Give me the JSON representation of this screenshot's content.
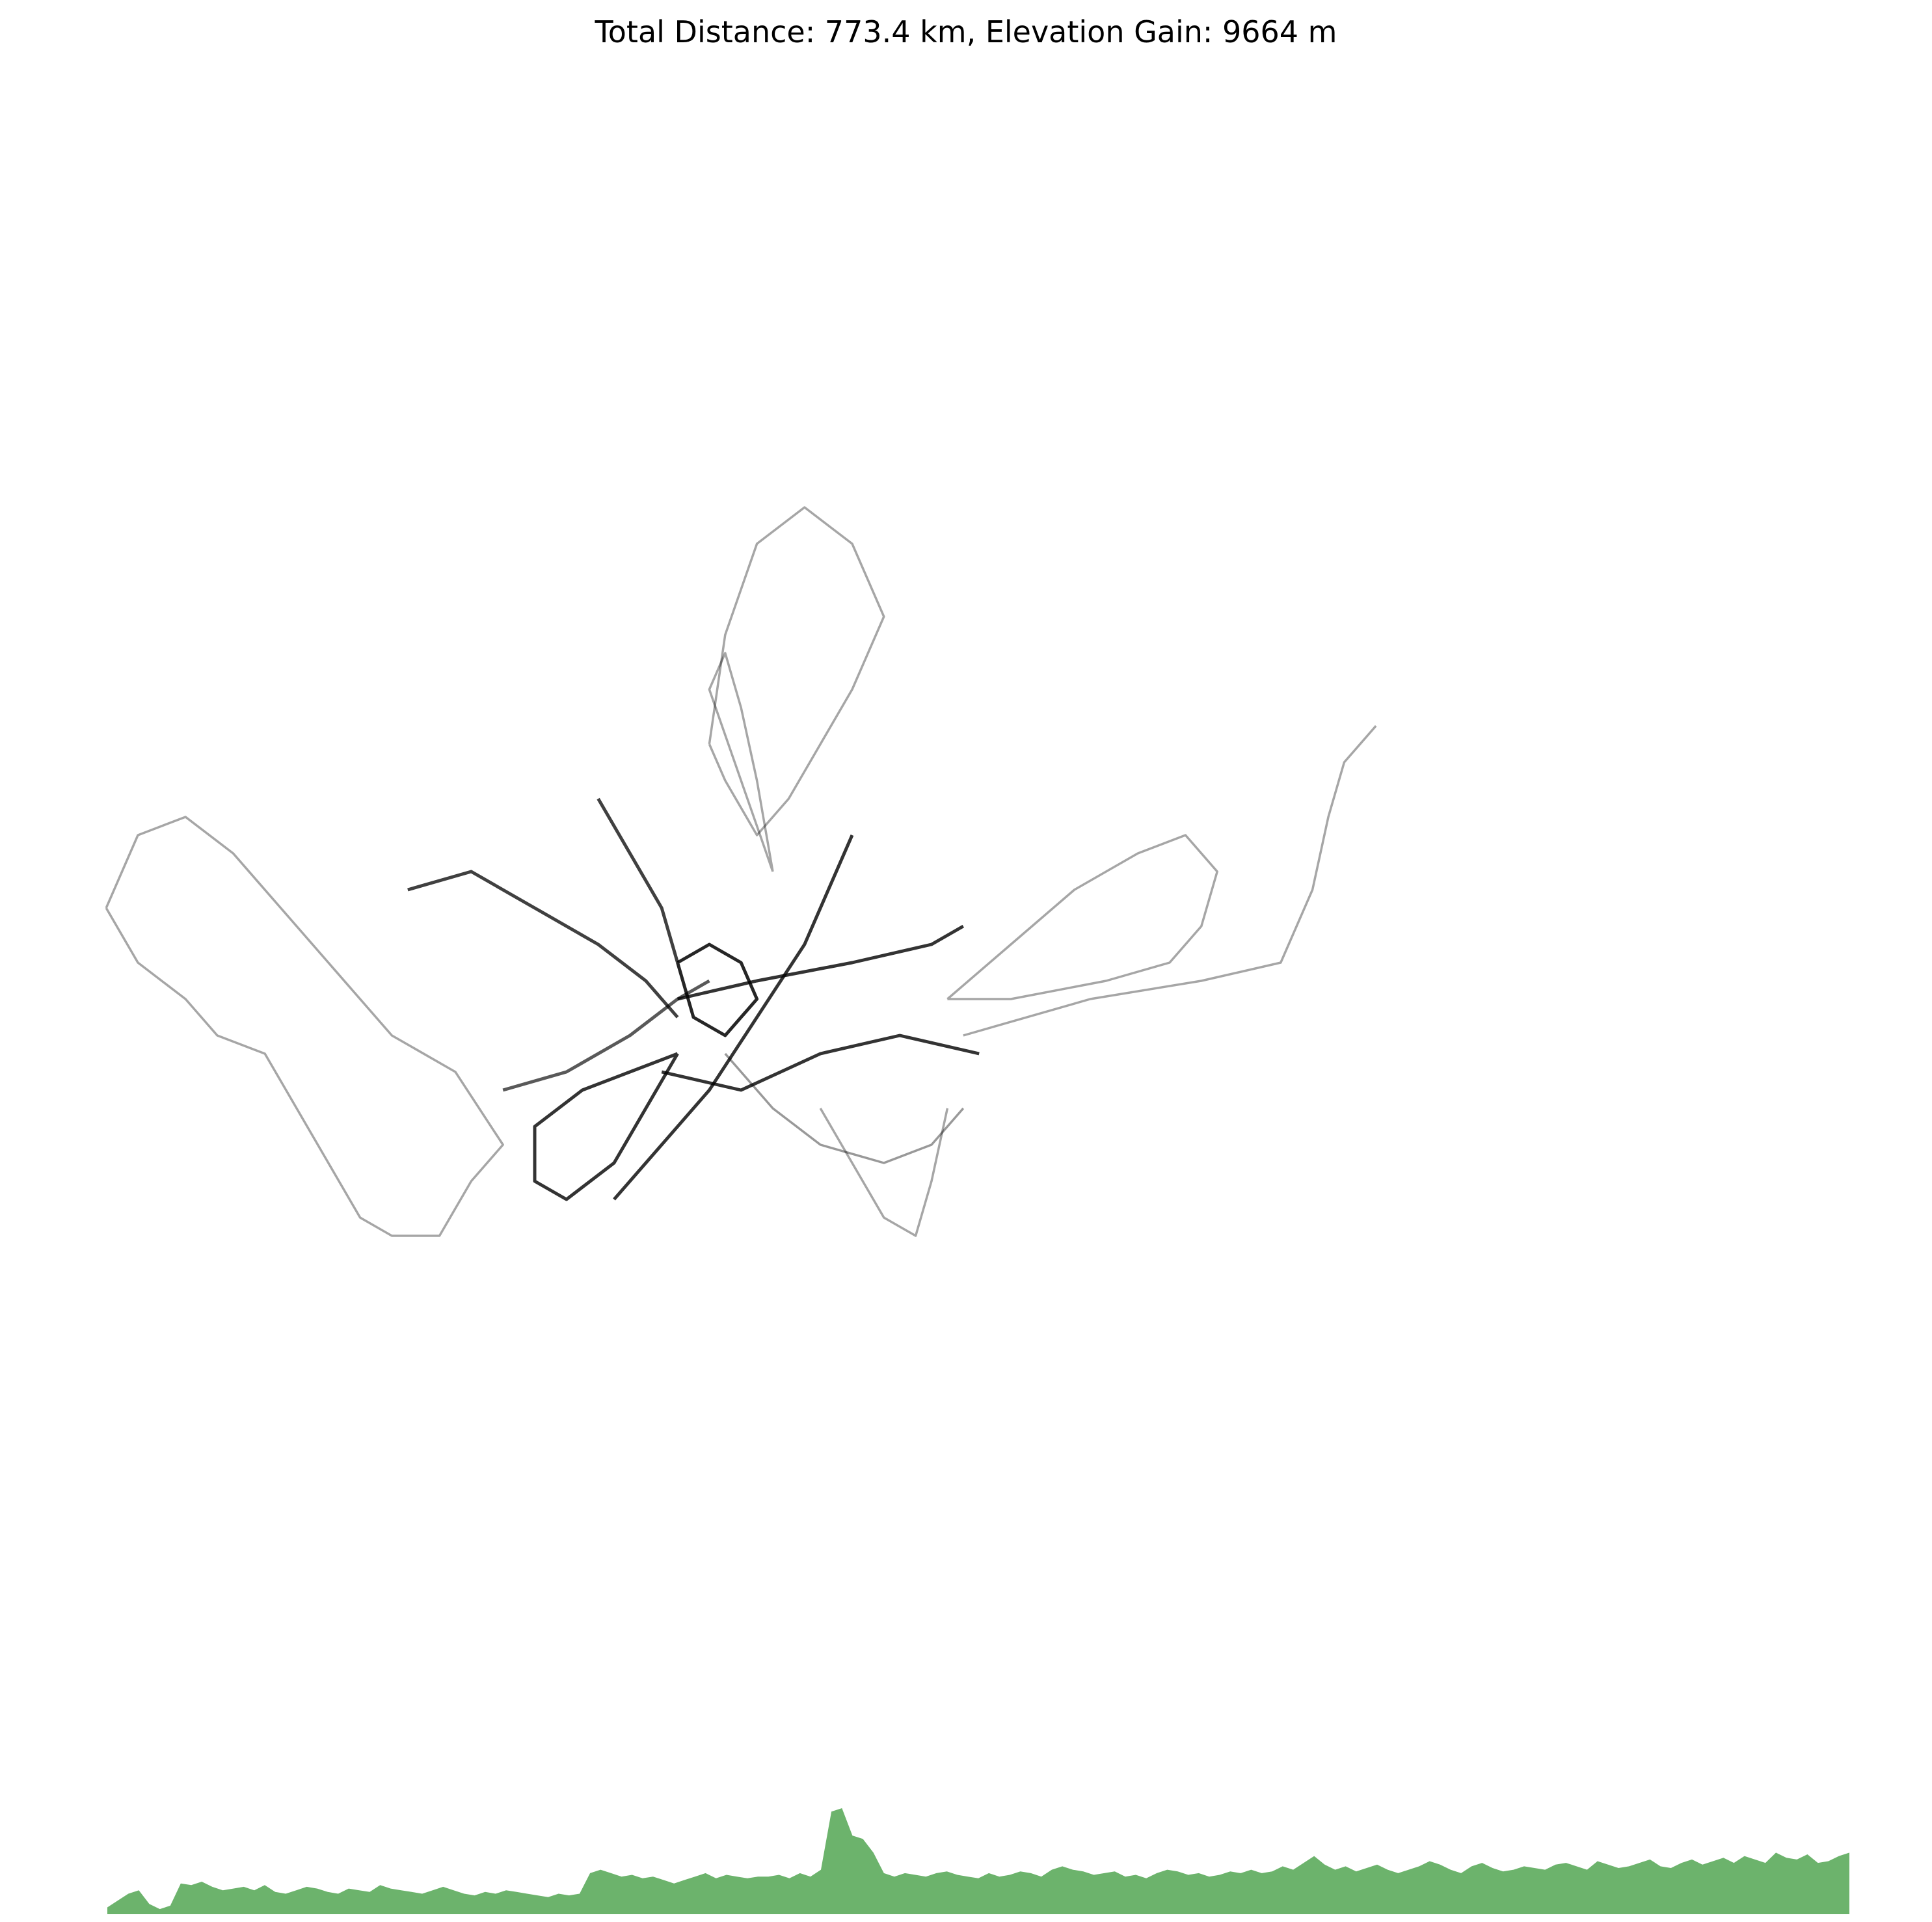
{
  "title": "Total Distance: 773.4 km, Elevation Gain: 9664 m",
  "colors": {
    "route": "#000000",
    "elevation_fill": "#6cb36c"
  },
  "chart_data": [
    {
      "type": "line",
      "name": "route-map",
      "xlabel": "",
      "ylabel": "",
      "grid": false,
      "axes_visible": false,
      "note_units": "normalized",
      "series": [
        {
          "name": "west-loop",
          "weight": 0.35,
          "points": [
            [
              0.03,
              0.47
            ],
            [
              0.05,
              0.5
            ],
            [
              0.08,
              0.52
            ],
            [
              0.1,
              0.54
            ],
            [
              0.13,
              0.55
            ],
            [
              0.15,
              0.58
            ],
            [
              0.17,
              0.61
            ],
            [
              0.19,
              0.64
            ],
            [
              0.21,
              0.65
            ],
            [
              0.24,
              0.65
            ],
            [
              0.26,
              0.62
            ],
            [
              0.28,
              0.6
            ],
            [
              0.25,
              0.56
            ],
            [
              0.21,
              0.54
            ],
            [
              0.17,
              0.5
            ],
            [
              0.14,
              0.47
            ],
            [
              0.11,
              0.44
            ],
            [
              0.08,
              0.42
            ],
            [
              0.05,
              0.43
            ],
            [
              0.03,
              0.47
            ]
          ]
        },
        {
          "name": "north-loop",
          "weight": 0.35,
          "points": [
            [
              0.41,
              0.38
            ],
            [
              0.42,
              0.32
            ],
            [
              0.44,
              0.27
            ],
            [
              0.47,
              0.25
            ],
            [
              0.5,
              0.27
            ],
            [
              0.52,
              0.31
            ],
            [
              0.5,
              0.35
            ],
            [
              0.48,
              0.38
            ],
            [
              0.46,
              0.41
            ],
            [
              0.44,
              0.43
            ],
            [
              0.42,
              0.4
            ],
            [
              0.41,
              0.38
            ]
          ]
        },
        {
          "name": "north-spur",
          "weight": 0.35,
          "points": [
            [
              0.45,
              0.45
            ],
            [
              0.44,
              0.4
            ],
            [
              0.43,
              0.36
            ],
            [
              0.42,
              0.33
            ],
            [
              0.41,
              0.35
            ],
            [
              0.43,
              0.4
            ],
            [
              0.45,
              0.45
            ]
          ]
        },
        {
          "name": "east-loop",
          "weight": 0.35,
          "points": [
            [
              0.56,
              0.52
            ],
            [
              0.6,
              0.49
            ],
            [
              0.64,
              0.46
            ],
            [
              0.68,
              0.44
            ],
            [
              0.71,
              0.43
            ],
            [
              0.73,
              0.45
            ],
            [
              0.72,
              0.48
            ],
            [
              0.7,
              0.5
            ],
            [
              0.66,
              0.51
            ],
            [
              0.6,
              0.52
            ],
            [
              0.56,
              0.52
            ]
          ]
        },
        {
          "name": "far-east",
          "weight": 0.35,
          "points": [
            [
              0.57,
              0.54
            ],
            [
              0.65,
              0.52
            ],
            [
              0.72,
              0.51
            ],
            [
              0.77,
              0.5
            ],
            [
              0.79,
              0.46
            ],
            [
              0.8,
              0.42
            ],
            [
              0.81,
              0.39
            ],
            [
              0.83,
              0.37
            ]
          ]
        },
        {
          "name": "west-main",
          "weight": 0.75,
          "points": [
            [
              0.22,
              0.46
            ],
            [
              0.26,
              0.45
            ],
            [
              0.3,
              0.47
            ],
            [
              0.34,
              0.49
            ],
            [
              0.37,
              0.51
            ],
            [
              0.39,
              0.53
            ]
          ]
        },
        {
          "name": "south-loop",
          "weight": 0.8,
          "points": [
            [
              0.39,
              0.55
            ],
            [
              0.37,
              0.58
            ],
            [
              0.35,
              0.61
            ],
            [
              0.32,
              0.63
            ],
            [
              0.3,
              0.62
            ],
            [
              0.3,
              0.59
            ],
            [
              0.33,
              0.57
            ],
            [
              0.36,
              0.56
            ],
            [
              0.39,
              0.55
            ]
          ]
        },
        {
          "name": "diagonal-ne",
          "weight": 0.8,
          "points": [
            [
              0.35,
              0.63
            ],
            [
              0.38,
              0.6
            ],
            [
              0.41,
              0.57
            ],
            [
              0.44,
              0.53
            ],
            [
              0.47,
              0.49
            ],
            [
              0.49,
              0.45
            ],
            [
              0.5,
              0.43
            ]
          ]
        },
        {
          "name": "diagonal-sw",
          "weight": 0.65,
          "points": [
            [
              0.28,
              0.57
            ],
            [
              0.32,
              0.56
            ],
            [
              0.36,
              0.54
            ],
            [
              0.39,
              0.52
            ],
            [
              0.41,
              0.51
            ]
          ]
        },
        {
          "name": "central-east",
          "weight": 0.8,
          "points": [
            [
              0.39,
              0.52
            ],
            [
              0.44,
              0.51
            ],
            [
              0.5,
              0.5
            ],
            [
              0.55,
              0.49
            ],
            [
              0.57,
              0.48
            ]
          ]
        },
        {
          "name": "central-south",
          "weight": 0.8,
          "points": [
            [
              0.38,
              0.56
            ],
            [
              0.43,
              0.57
            ],
            [
              0.48,
              0.55
            ],
            [
              0.53,
              0.54
            ],
            [
              0.58,
              0.55
            ]
          ]
        },
        {
          "name": "inner-ring",
          "weight": 0.85,
          "points": [
            [
              0.39,
              0.5
            ],
            [
              0.4,
              0.53
            ],
            [
              0.42,
              0.54
            ],
            [
              0.44,
              0.52
            ],
            [
              0.43,
              0.5
            ],
            [
              0.41,
              0.49
            ],
            [
              0.39,
              0.5
            ]
          ]
        },
        {
          "name": "north-main",
          "weight": 0.75,
          "points": [
            [
              0.34,
              0.41
            ],
            [
              0.36,
              0.44
            ],
            [
              0.38,
              0.47
            ],
            [
              0.39,
              0.5
            ]
          ]
        },
        {
          "name": "south-east",
          "weight": 0.4,
          "points": [
            [
              0.42,
              0.55
            ],
            [
              0.45,
              0.58
            ],
            [
              0.48,
              0.6
            ],
            [
              0.52,
              0.61
            ],
            [
              0.55,
              0.6
            ],
            [
              0.57,
              0.58
            ]
          ]
        },
        {
          "name": "south-spur",
          "weight": 0.35,
          "points": [
            [
              0.48,
              0.58
            ],
            [
              0.5,
              0.61
            ],
            [
              0.52,
              0.64
            ],
            [
              0.54,
              0.65
            ],
            [
              0.55,
              0.62
            ],
            [
              0.56,
              0.58
            ]
          ]
        }
      ]
    },
    {
      "type": "area",
      "name": "elevation-profile",
      "xlabel": "",
      "ylabel": "",
      "grid": false,
      "axes_visible": false,
      "x_range": [
        0,
        773.4
      ],
      "y": [
        4,
        8,
        12,
        14,
        6,
        3,
        5,
        18,
        17,
        19,
        16,
        14,
        15,
        16,
        14,
        17,
        13,
        12,
        14,
        16,
        15,
        13,
        12,
        15,
        14,
        13,
        17,
        15,
        14,
        13,
        12,
        14,
        16,
        14,
        12,
        11,
        13,
        12,
        14,
        13,
        12,
        11,
        10,
        12,
        11,
        12,
        24,
        26,
        24,
        22,
        23,
        21,
        22,
        20,
        18,
        20,
        22,
        24,
        21,
        23,
        22,
        21,
        22,
        22,
        23,
        21,
        24,
        22,
        26,
        60,
        62,
        46,
        44,
        36,
        24,
        22,
        24,
        23,
        22,
        24,
        25,
        23,
        22,
        21,
        24,
        22,
        23,
        25,
        24,
        22,
        26,
        28,
        26,
        25,
        23,
        24,
        25,
        22,
        23,
        21,
        24,
        26,
        25,
        23,
        24,
        22,
        23,
        25,
        24,
        26,
        24,
        25,
        28,
        26,
        30,
        34,
        29,
        26,
        28,
        25,
        27,
        29,
        26,
        24,
        26,
        28,
        31,
        29,
        26,
        24,
        28,
        30,
        27,
        25,
        26,
        28,
        27,
        26,
        29,
        30,
        28,
        26,
        31,
        29,
        27,
        28,
        30,
        32,
        28,
        27,
        30,
        32,
        29,
        31,
        33,
        30,
        34,
        32,
        30,
        36,
        33,
        32,
        35,
        30,
        31,
        34,
        36
      ]
    }
  ]
}
